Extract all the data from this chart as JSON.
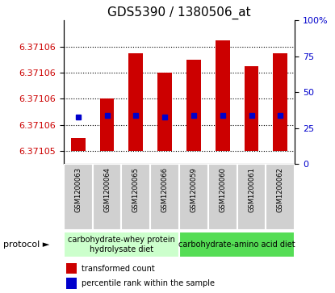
{
  "title": "GDS5390 / 1380506_at",
  "samples": [
    "GSM1200063",
    "GSM1200064",
    "GSM1200065",
    "GSM1200066",
    "GSM1200059",
    "GSM1200060",
    "GSM1200061",
    "GSM1200062"
  ],
  "transformed_counts": [
    6.371052,
    6.371058,
    6.371065,
    6.371062,
    6.371064,
    6.371067,
    6.371063,
    6.371065
  ],
  "percentile_ranks": [
    33,
    34,
    34,
    33,
    34,
    34,
    34,
    34
  ],
  "bar_base": 6.37105,
  "ylim_min": 6.371048,
  "ylim_max": 6.37107,
  "yticks": [
    6.37105,
    6.371054,
    6.371058,
    6.371062,
    6.371066
  ],
  "ytick_labels": [
    "6.37105",
    "6.37106",
    "6.37106",
    "6.37106",
    "6.37106"
  ],
  "right_yticks": [
    0,
    25,
    50,
    75,
    100
  ],
  "bar_color": "#cc0000",
  "marker_color": "#0000cc",
  "bar_width": 0.5,
  "sample_box_color": "#d0d0d0",
  "sample_box_edge": "white",
  "protocol_groups": [
    {
      "label": "carbohydrate-whey protein\nhydrolysate diet",
      "start": 0,
      "end": 4,
      "color": "#ccffcc"
    },
    {
      "label": "carbohydrate-amino acid diet",
      "start": 4,
      "end": 8,
      "color": "#55dd55"
    }
  ],
  "legend_labels": [
    "transformed count",
    "percentile rank within the sample"
  ],
  "legend_colors": [
    "#cc0000",
    "#0000cc"
  ],
  "left_tick_color": "#cc0000",
  "right_tick_color": "#0000cc",
  "title_fontsize": 11,
  "tick_fontsize": 8,
  "sample_fontsize": 6,
  "protocol_fontsize": 7,
  "legend_fontsize": 7,
  "protocol_label_text": "protocol",
  "protocol_arrow": "►"
}
